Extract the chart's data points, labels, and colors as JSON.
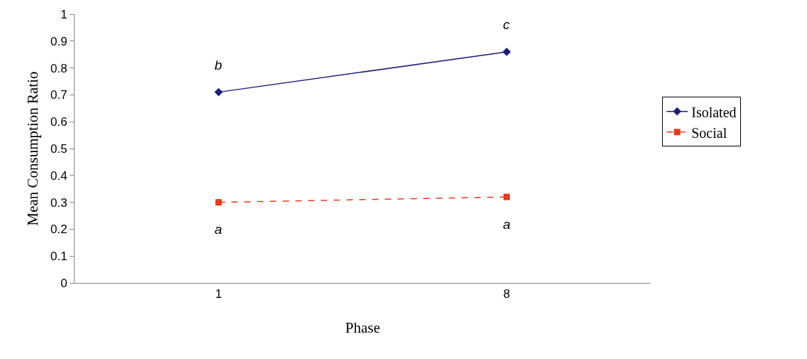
{
  "chart_data": {
    "type": "line",
    "xlabel": "Phase",
    "ylabel": "Mean Consumption Ratio",
    "categories": [
      "1",
      "8"
    ],
    "series": [
      {
        "name": "Isolated",
        "color": "#1f1f7a",
        "values": [
          0.71,
          0.86
        ],
        "marker": "diamond",
        "line_style": "solid"
      },
      {
        "name": "Social",
        "color": "#e03c1e",
        "values": [
          0.3,
          0.32
        ],
        "marker": "square",
        "line_style": "dashed"
      }
    ],
    "ylim": [
      0,
      1
    ],
    "yticks": [
      0,
      0.1,
      0.2,
      0.3,
      0.4,
      0.5,
      0.6,
      0.7,
      0.8,
      0.9,
      1
    ],
    "grid": false,
    "legend": "right",
    "annotations": [
      {
        "text": "b",
        "x": "1",
        "y": 0.71
      },
      {
        "text": "c",
        "x": "8",
        "y": 0.86
      },
      {
        "text": "a",
        "x": "1",
        "y": 0.3
      },
      {
        "text": "a",
        "x": "8",
        "y": 0.32
      }
    ]
  }
}
